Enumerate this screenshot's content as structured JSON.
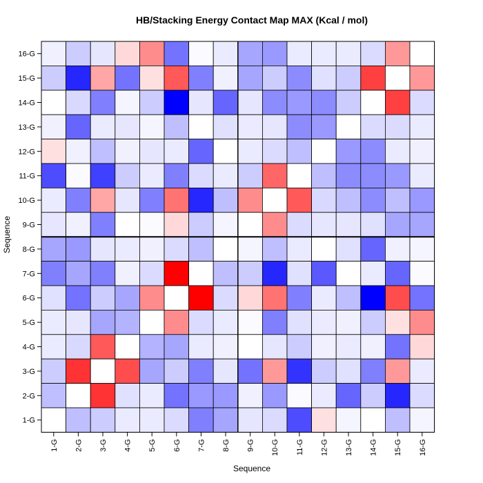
{
  "chart_data": {
    "type": "heatmap",
    "title": "HB/Stacking Energy Contact Map MAX (Kcal / mol)",
    "xlabel": "Sequence",
    "ylabel": "Sequence",
    "x_categories": [
      "1-G",
      "2-G",
      "3-G",
      "4-G",
      "5-G",
      "6-G",
      "7-G",
      "8-G",
      "9-G",
      "10-G",
      "11-G",
      "12-G",
      "13-G",
      "14-G",
      "15-G",
      "16-G"
    ],
    "y_categories_bottom_to_top": [
      "1-G",
      "2-G",
      "3-G",
      "4-G",
      "5-G",
      "6-G",
      "7-G",
      "8-G",
      "9-G",
      "10-G",
      "11-G",
      "12-G",
      "13-G",
      "14-G",
      "15-G",
      "16-G"
    ],
    "color_scale": {
      "low": "#0000ff",
      "mid": "#ffffff",
      "high": "#ff0000",
      "min": -1,
      "max": 1
    },
    "divider_after_row": "8-G",
    "rows_top_to_bottom": [
      {
        "row": "16-G",
        "values": [
          -0.06,
          -0.2,
          -0.1,
          0.15,
          0.45,
          -0.55,
          -0.02,
          -0.08,
          -0.35,
          -0.4,
          -0.08,
          -0.08,
          -0.08,
          -0.14,
          0.4,
          0
        ]
      },
      {
        "row": "15-G",
        "values": [
          -0.2,
          -0.85,
          0.35,
          -0.55,
          0.12,
          0.65,
          -0.5,
          -0.06,
          -0.35,
          -0.2,
          -0.45,
          -0.12,
          -0.2,
          0.75,
          0,
          0.4
        ]
      },
      {
        "row": "14-G",
        "values": [
          0,
          -0.15,
          -0.5,
          -0.04,
          -0.2,
          -1.0,
          -0.1,
          -0.6,
          -0.1,
          -0.45,
          -0.4,
          -0.45,
          -0.2,
          0,
          0.75,
          -0.14
        ]
      },
      {
        "row": "13-G",
        "values": [
          -0.06,
          -0.6,
          -0.08,
          -0.1,
          -0.04,
          -0.25,
          0,
          -0.12,
          -0.08,
          -0.1,
          -0.45,
          -0.4,
          0,
          -0.14,
          -0.14,
          -0.08
        ]
      },
      {
        "row": "12-G",
        "values": [
          0.12,
          -0.06,
          -0.25,
          -0.06,
          -0.1,
          -0.08,
          -0.6,
          0,
          -0.08,
          -0.14,
          -0.25,
          0,
          -0.4,
          -0.45,
          -0.08,
          -0.06
        ]
      },
      {
        "row": "11-G",
        "values": [
          -0.7,
          -0.02,
          -0.75,
          -0.2,
          -0.08,
          -0.5,
          -0.14,
          -0.08,
          -0.2,
          0.6,
          0,
          -0.25,
          -0.45,
          -0.45,
          -0.4,
          -0.08
        ]
      },
      {
        "row": "10-G",
        "values": [
          -0.08,
          -0.5,
          0.35,
          -0.1,
          -0.5,
          0.55,
          -0.85,
          -0.25,
          0.45,
          0,
          0.65,
          -0.15,
          -0.25,
          -0.45,
          -0.25,
          -0.4
        ]
      },
      {
        "row": "9-G",
        "values": [
          -0.1,
          -0.06,
          -0.5,
          0,
          -0.02,
          0.15,
          -0.2,
          -0.04,
          0,
          0.45,
          -0.14,
          -0.1,
          -0.1,
          -0.12,
          -0.35,
          -0.35
        ]
      },
      {
        "row": "8-G",
        "values": [
          -0.35,
          -0.4,
          -0.1,
          -0.08,
          -0.06,
          -0.14,
          -0.25,
          0,
          -0.04,
          -0.25,
          -0.08,
          0,
          -0.12,
          -0.6,
          -0.06,
          -0.04
        ]
      },
      {
        "row": "7-G",
        "values": [
          -0.5,
          -0.35,
          -0.5,
          -0.06,
          -0.14,
          1.0,
          0,
          -0.25,
          -0.2,
          -0.85,
          -0.12,
          -0.65,
          0,
          -0.08,
          -0.6,
          -0.02
        ]
      },
      {
        "row": "6-G",
        "values": [
          -0.12,
          -0.55,
          -0.2,
          -0.35,
          0.45,
          0,
          1.0,
          -0.14,
          0.15,
          0.55,
          -0.5,
          -0.08,
          -0.25,
          -1.0,
          0.7,
          -0.55
        ]
      },
      {
        "row": "5-G",
        "values": [
          -0.08,
          -0.1,
          -0.35,
          -0.3,
          0,
          0.45,
          -0.14,
          -0.08,
          -0.02,
          -0.5,
          -0.12,
          -0.08,
          -0.06,
          -0.2,
          0.12,
          0.45
        ]
      },
      {
        "row": "4-G",
        "values": [
          -0.08,
          -0.15,
          0.65,
          0,
          -0.3,
          -0.35,
          -0.08,
          -0.06,
          0,
          -0.1,
          -0.2,
          -0.06,
          -0.08,
          -0.06,
          -0.55,
          0.15
        ]
      },
      {
        "row": "3-G",
        "values": [
          -0.2,
          0.8,
          0,
          0.7,
          -0.35,
          -0.2,
          -0.5,
          -0.1,
          -0.55,
          0.4,
          -0.8,
          -0.2,
          -0.12,
          -0.5,
          0.4,
          -0.08
        ]
      },
      {
        "row": "2-G",
        "values": [
          -0.25,
          0,
          0.8,
          -0.12,
          -0.08,
          -0.55,
          -0.4,
          -0.4,
          -0.06,
          -0.4,
          -0.02,
          -0.08,
          -0.6,
          -0.2,
          -0.85,
          -0.14
        ]
      },
      {
        "row": "1-G",
        "values": [
          0,
          -0.25,
          -0.2,
          -0.08,
          -0.08,
          -0.14,
          -0.5,
          -0.35,
          -0.1,
          -0.14,
          -0.7,
          0.12,
          -0.04,
          0,
          -0.25,
          -0.04
        ]
      }
    ]
  }
}
